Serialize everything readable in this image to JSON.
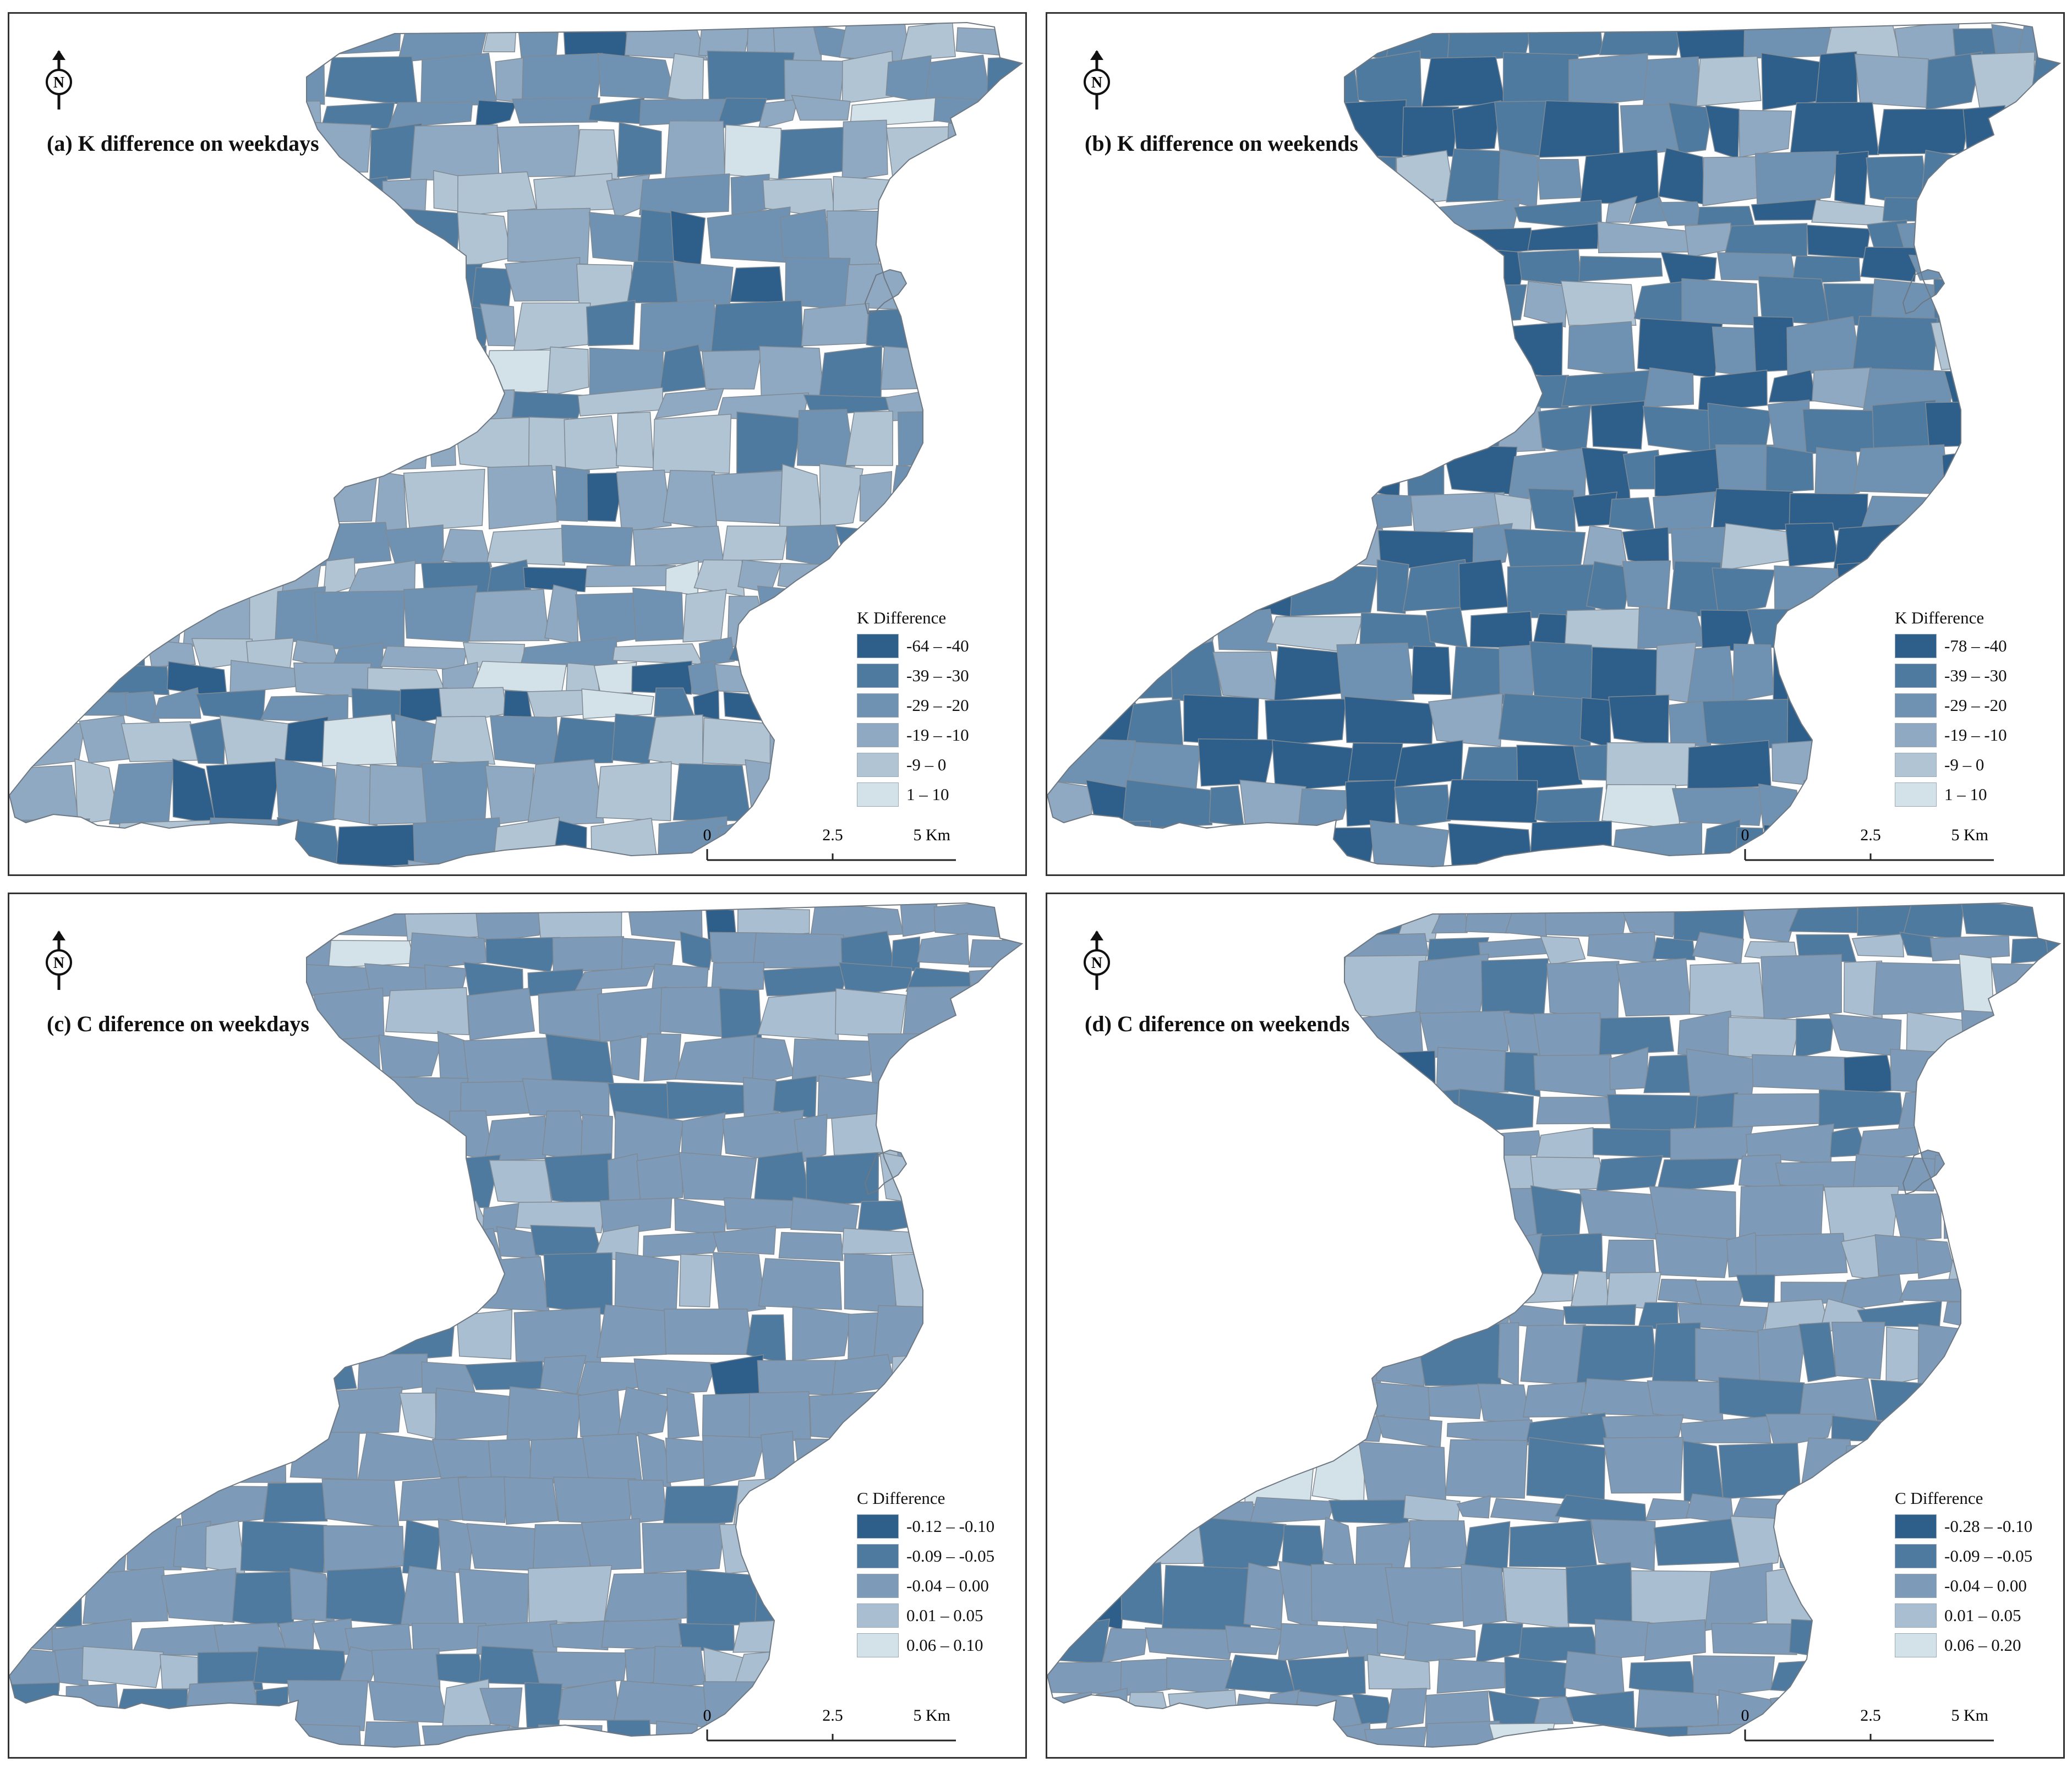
{
  "panels": [
    {
      "title": "(a) K difference on weekdays",
      "legend_title": "K Difference",
      "classes": [
        {
          "label": "-64 – -40",
          "color": "#2e5f8a"
        },
        {
          "label": "-39 – -30",
          "color": "#4f7aa0"
        },
        {
          "label": "-29 – -20",
          "color": "#6f92b3"
        },
        {
          "label": "-19 – -10",
          "color": "#8fa9c2"
        },
        {
          "label": "-9 – 0",
          "color": "#b0c4d4"
        },
        {
          "label": "1 – 10",
          "color": "#d3e1e8"
        }
      ],
      "fill_counts": [
        20,
        40,
        70,
        90,
        60,
        8
      ],
      "scale": {
        "ticks": [
          "0",
          "2.5",
          "5 Km"
        ]
      }
    },
    {
      "title": "(b) K difference on weekends",
      "legend_title": "K Difference",
      "classes": [
        {
          "label": "-78 – -40",
          "color": "#2e5f8a"
        },
        {
          "label": "-39 – -30",
          "color": "#4f7aa0"
        },
        {
          "label": "-29 – -20",
          "color": "#6f92b3"
        },
        {
          "label": "-19 – -10",
          "color": "#8fa9c2"
        },
        {
          "label": "-9 – 0",
          "color": "#b0c4d4"
        },
        {
          "label": "1 – 10",
          "color": "#d3e1e8"
        }
      ],
      "fill_counts": [
        80,
        90,
        60,
        30,
        12,
        2
      ],
      "scale": {
        "ticks": [
          "0",
          "2.5",
          "5 Km"
        ]
      }
    },
    {
      "title": "(c) C diference on weekdays",
      "legend_title": "C Difference",
      "classes": [
        {
          "label": "-0.12 – -0.10",
          "color": "#2e5f8a"
        },
        {
          "label": "-0.09 – -0.05",
          "color": "#4f7aa0"
        },
        {
          "label": "-0.04 – 0.00",
          "color": "#7d9bb9"
        },
        {
          "label": "0.01 – 0.05",
          "color": "#a9bfd1"
        },
        {
          "label": "0.06 – 0.10",
          "color": "#d3e1e8"
        }
      ],
      "fill_counts": [
        4,
        30,
        180,
        35,
        2
      ],
      "scale": {
        "ticks": [
          "0",
          "2.5",
          "5 Km"
        ]
      }
    },
    {
      "title": "(d) C diference on weekends",
      "legend_title": "C Difference",
      "classes": [
        {
          "label": "-0.28 – -0.10",
          "color": "#2e5f8a"
        },
        {
          "label": "-0.09 – -0.05",
          "color": "#4f7aa0"
        },
        {
          "label": "-0.04 – 0.00",
          "color": "#7d9bb9"
        },
        {
          "label": "0.01 – 0.05",
          "color": "#a9bfd1"
        },
        {
          "label": "0.06 – 0.20",
          "color": "#d3e1e8"
        }
      ],
      "fill_counts": [
        4,
        70,
        140,
        35,
        4
      ],
      "scale": {
        "ticks": [
          "0",
          "2.5",
          "5 Km"
        ]
      }
    }
  ],
  "north_label": "N"
}
